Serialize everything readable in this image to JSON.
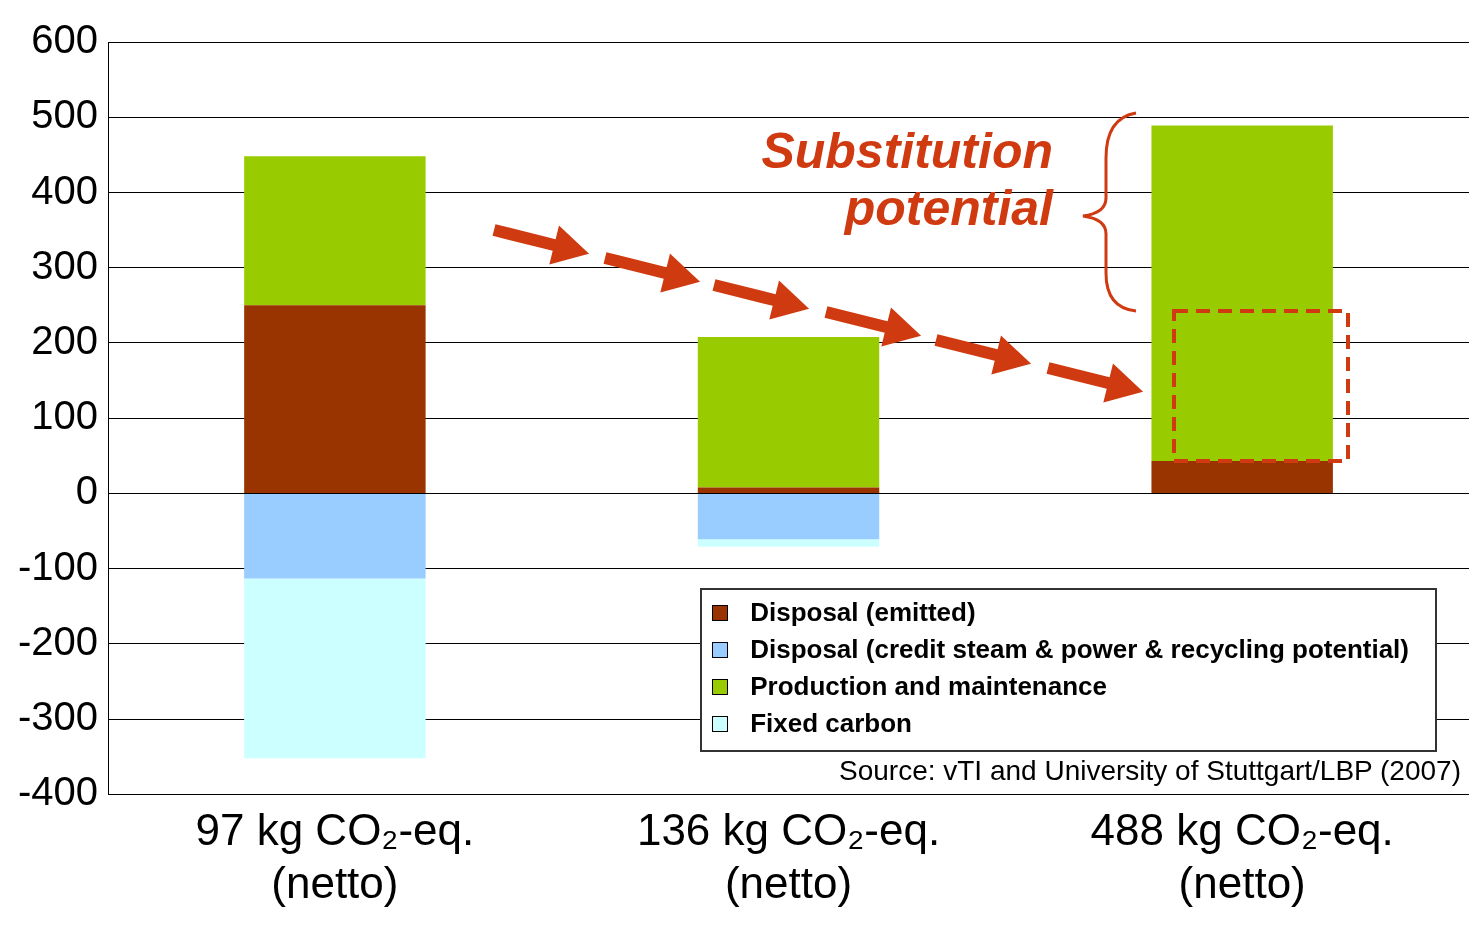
{
  "chart_data": {
    "type": "bar",
    "stacked": true,
    "categories": [
      "97 kg CO₂-eq.\n(netto)",
      "136 kg CO₂-eq.\n(netto)",
      "488 kg CO₂-eq.\n(netto)"
    ],
    "series": [
      {
        "name": "Disposal (emitted)",
        "color": "#993300",
        "values": [
          250,
          8,
          43
        ]
      },
      {
        "name": "Disposal (credit steam & power & recycling potential)",
        "color": "#99ccff",
        "values": [
          -113,
          -61,
          null
        ]
      },
      {
        "name": "Production and maintenance",
        "color": "#99cc00",
        "values": [
          198,
          200,
          446
        ]
      },
      {
        "name": "Fixed carbon",
        "color": "#ccffff",
        "values": [
          -239,
          -10,
          null
        ]
      }
    ],
    "ylim": [
      -400,
      600
    ],
    "yticks": [
      -400,
      -300,
      -200,
      -100,
      0,
      100,
      200,
      300,
      400,
      500,
      600
    ],
    "grid": "y",
    "legend": "bottom right",
    "annotations": [
      "Substitution potential",
      "Source: vTI and University of Stuttgart/LBP (2007)"
    ]
  }
}
